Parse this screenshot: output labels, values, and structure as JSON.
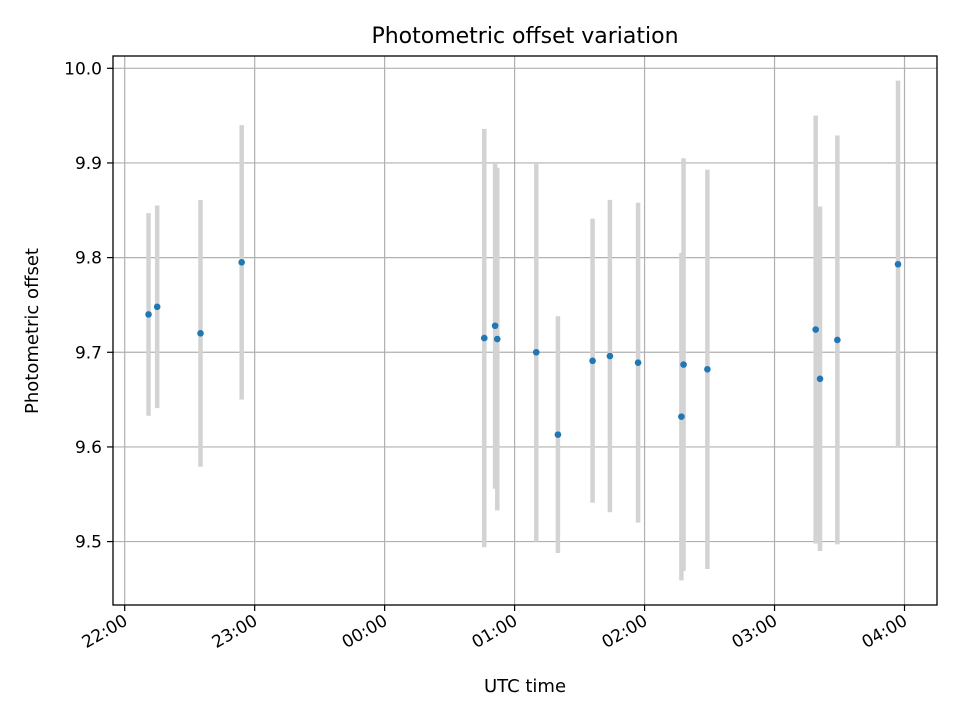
{
  "chart_data": {
    "type": "scatter",
    "title": "Photometric offset variation",
    "xlabel": "UTC time",
    "ylabel": "Photometric offset",
    "x_tick_labels": [
      "22:00",
      "23:00",
      "00:00",
      "01:00",
      "02:00",
      "03:00",
      "04:00"
    ],
    "x_tick_hours": [
      22,
      23,
      24,
      25,
      26,
      27,
      28
    ],
    "xlim_hours": [
      21.91,
      28.25
    ],
    "y_ticks": [
      9.5,
      9.6,
      9.7,
      9.8,
      9.9,
      10.0
    ],
    "y_tick_labels": [
      "9.5",
      "9.6",
      "9.7",
      "9.8",
      "9.9",
      "10.0"
    ],
    "ylim": [
      9.433,
      10.013
    ],
    "grid": true,
    "marker_color": "#1f77b4",
    "errorbar_color": "#d3d3d3",
    "points": [
      {
        "time": "22:11",
        "y": 9.74,
        "err": 0.107
      },
      {
        "time": "22:15",
        "y": 9.748,
        "err": 0.107
      },
      {
        "time": "22:35",
        "y": 9.72,
        "err": 0.141
      },
      {
        "time": "22:54",
        "y": 9.795,
        "err": 0.145
      },
      {
        "time": "00:46",
        "y": 9.715,
        "err": 0.221
      },
      {
        "time": "00:51",
        "y": 9.728,
        "err": 0.172
      },
      {
        "time": "00:52",
        "y": 9.714,
        "err": 0.181
      },
      {
        "time": "01:10",
        "y": 9.7,
        "err": 0.2
      },
      {
        "time": "01:20",
        "y": 9.613,
        "err": 0.125
      },
      {
        "time": "01:36",
        "y": 9.691,
        "err": 0.15
      },
      {
        "time": "01:44",
        "y": 9.696,
        "err": 0.165
      },
      {
        "time": "01:57",
        "y": 9.689,
        "err": 0.169
      },
      {
        "time": "02:17",
        "y": 9.632,
        "err": 0.173
      },
      {
        "time": "02:18",
        "y": 9.687,
        "err": 0.218
      },
      {
        "time": "02:29",
        "y": 9.682,
        "err": 0.211
      },
      {
        "time": "03:19",
        "y": 9.724,
        "err": 0.226
      },
      {
        "time": "03:21",
        "y": 9.672,
        "err": 0.182
      },
      {
        "time": "03:29",
        "y": 9.713,
        "err": 0.216
      },
      {
        "time": "03:57",
        "y": 9.793,
        "err": 0.194
      }
    ]
  }
}
